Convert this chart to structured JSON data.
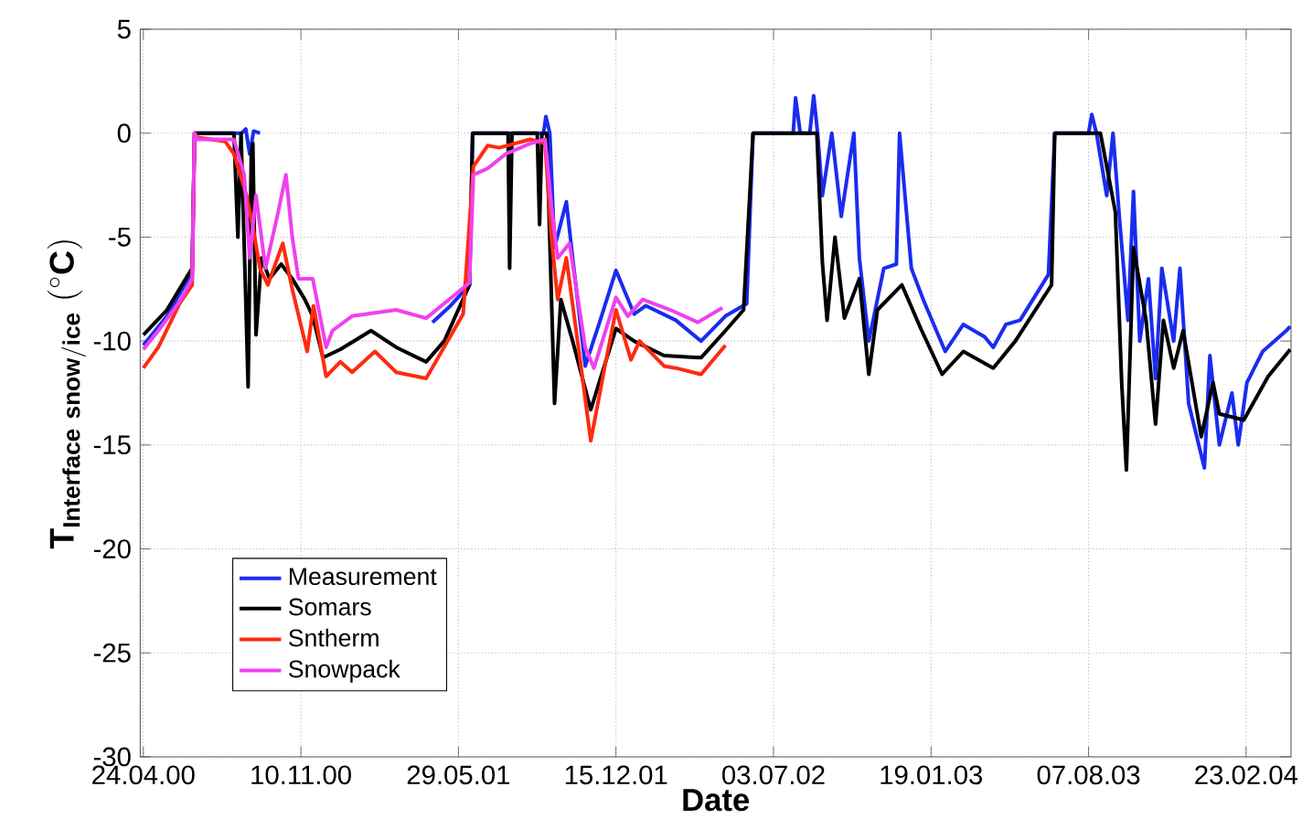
{
  "chart_data": {
    "type": "line",
    "xlabel": "Date",
    "ylabel": "\\mathbf{T_{Interface\\ snow/ice}\\ (^{\\circ}C)}",
    "xlim": [
      "2000-04-20",
      "2004-04-20"
    ],
    "ylim": [
      -30,
      5
    ],
    "xticks": [
      {
        "value": "2000-04-24",
        "label": "24.04.00"
      },
      {
        "value": "2000-11-10",
        "label": "10.11.00"
      },
      {
        "value": "2001-05-29",
        "label": "29.05.01"
      },
      {
        "value": "2001-12-15",
        "label": "15.12.01"
      },
      {
        "value": "2002-07-03",
        "label": "03.07.02"
      },
      {
        "value": "2003-01-19",
        "label": "19.01.03"
      },
      {
        "value": "2003-08-07",
        "label": "07.08.03"
      },
      {
        "value": "2004-02-23",
        "label": "23.02.04"
      }
    ],
    "yticks": [
      -30,
      -25,
      -20,
      -15,
      -10,
      -5,
      0,
      5
    ],
    "grid": true,
    "legend": "bottom left",
    "marker": "none",
    "line_style": "solid",
    "series": [
      {
        "name": "Measurement",
        "color": "#1a2cf0",
        "x": [
          "2000-04-24",
          "2000-05-24",
          "2000-06-20",
          "2000-06-25",
          "2000-06-28",
          "2000-08-27",
          "2000-09-01",
          "2000-09-06",
          "2000-09-11",
          "2000-09-19",
          "2001-01-01",
          "2001-04-26",
          "2001-05-19",
          "2001-06-12",
          "2001-06-16",
          "2001-09-14",
          "2001-09-17",
          "2001-09-22",
          "2001-09-28",
          "2001-10-13",
          "2001-10-21",
          "2001-11-06",
          "2001-11-25",
          "2001-12-15",
          "2002-01-07",
          "2002-01-22",
          "2002-03-01",
          "2002-04-02",
          "2002-05-03",
          "2002-05-30",
          "2002-06-07",
          "2002-07-28",
          "2002-07-31",
          "2002-08-06",
          "2002-08-18",
          "2002-08-23",
          "2002-08-28",
          "2002-09-03",
          "2002-09-15",
          "2002-09-27",
          "2002-10-13",
          "2002-10-20",
          "2002-11-01",
          "2002-11-20",
          "2002-12-06",
          "2002-12-10",
          "2002-12-25",
          "2003-01-09",
          "2003-02-06",
          "2003-03-01",
          "2003-03-28",
          "2003-04-08",
          "2003-04-24",
          "2003-05-12",
          "2003-06-17",
          "2003-06-25",
          "2003-08-07",
          "2003-08-11",
          "2003-08-17",
          "2003-08-30",
          "2003-09-07",
          "2003-09-15",
          "2003-09-26",
          "2003-10-03",
          "2003-10-11",
          "2003-10-22",
          "2003-10-31",
          "2003-11-08",
          "2003-11-23",
          "2003-12-01",
          "2003-12-12",
          "2004-01-01",
          "2004-01-08",
          "2004-01-20",
          "2004-02-05",
          "2004-02-13",
          "2004-02-24",
          "2004-03-15",
          "2004-04-14",
          "2004-04-19"
        ],
        "values": [
          -10.2,
          -8.8,
          -7,
          -6.7,
          0,
          0,
          0.2,
          -1,
          0.1,
          0,
          null,
          -9.1,
          -8.3,
          -7.3,
          0,
          0,
          0.8,
          0,
          -5.5,
          -3.3,
          -6,
          -11.2,
          -9,
          -6.6,
          -8.7,
          -8.3,
          -9,
          -10,
          -8.8,
          -8.2,
          0,
          0,
          1.7,
          0,
          0,
          1.8,
          0,
          -3,
          0,
          -4,
          0,
          -6,
          -10,
          -6.5,
          -6.3,
          0,
          -6.5,
          -8,
          -10.5,
          -9.2,
          -9.8,
          -10.3,
          -9.2,
          -9,
          -6.8,
          0,
          0,
          0.9,
          0,
          -3,
          0,
          -4,
          -9,
          -2.8,
          -10,
          -7,
          -11.8,
          -6.5,
          -10,
          -6.5,
          -13,
          -16.1,
          -10.7,
          -15,
          -12.5,
          -15,
          -12,
          -10.5,
          -9.5,
          -9.3
        ]
      },
      {
        "name": "Somars",
        "color": "#000000",
        "x": [
          "2000-04-24",
          "2000-05-24",
          "2000-06-20",
          "2000-06-25",
          "2000-06-28",
          "2000-08-17",
          "2000-08-22",
          "2000-08-26",
          "2000-09-01",
          "2000-09-04",
          "2000-09-08",
          "2000-09-10",
          "2000-09-14",
          "2000-09-21",
          "2000-10-01",
          "2000-10-16",
          "2000-10-30",
          "2000-11-15",
          "2000-11-25",
          "2000-12-08",
          "2000-12-30",
          "2001-02-07",
          "2001-03-11",
          "2001-04-18",
          "2001-05-11",
          "2001-06-12",
          "2001-06-16",
          "2001-07-31",
          "2001-08-02",
          "2001-08-05",
          "2001-09-06",
          "2001-09-09",
          "2001-09-12",
          "2001-09-18",
          "2001-09-28",
          "2001-10-06",
          "2001-10-21",
          "2001-11-13",
          "2001-12-15",
          "2002-01-07",
          "2002-02-14",
          "2002-04-02",
          "2002-05-03",
          "2002-05-26",
          "2002-06-07",
          "2002-08-27",
          "2002-09-03",
          "2002-09-09",
          "2002-09-19",
          "2002-10-01",
          "2002-10-20",
          "2002-11-01",
          "2002-11-12",
          "2002-12-13",
          "2003-01-06",
          "2003-02-02",
          "2003-03-01",
          "2003-04-08",
          "2003-05-06",
          "2003-06-21",
          "2003-06-25",
          "2003-08-22",
          "2003-09-10",
          "2003-09-18",
          "2003-09-24",
          "2003-10-03",
          "2003-10-19",
          "2003-10-31",
          "2003-11-10",
          "2003-11-23",
          "2003-12-05",
          "2003-12-28",
          "2004-01-12",
          "2004-01-20",
          "2004-02-20",
          "2004-03-22",
          "2004-04-19"
        ],
        "values": [
          -9.7,
          -8.5,
          -6.8,
          -6.5,
          0,
          0,
          -5,
          0,
          -8,
          -12.2,
          -1,
          -0.5,
          -9.7,
          -6,
          -7,
          -6.3,
          -7,
          -8,
          -8.8,
          -10.8,
          -10.4,
          -9.5,
          -10.3,
          -11,
          -10,
          -7.3,
          0,
          0,
          -6.5,
          0,
          0,
          -4.4,
          0,
          0,
          -13,
          -8,
          -10,
          -13.3,
          -9.4,
          -10,
          -10.7,
          -10.8,
          -9.5,
          -8.5,
          0,
          0,
          -6.2,
          -9,
          -5,
          -8.9,
          -7,
          -11.6,
          -8.5,
          -7.3,
          -9.4,
          -11.6,
          -10.5,
          -11.3,
          -10,
          -7.3,
          0,
          0,
          -3.8,
          -12,
          -16.2,
          -5.5,
          -9,
          -14,
          -9,
          -11.3,
          -9.5,
          -14.6,
          -12,
          -13.5,
          -13.8,
          -11.7,
          -10.4
        ]
      },
      {
        "name": "Sntherm",
        "color": "#ff2a10",
        "x": [
          "2000-04-24",
          "2000-05-13",
          "2000-06-09",
          "2000-06-25",
          "2000-06-28",
          "2000-07-01",
          "2000-08-06",
          "2000-08-17",
          "2000-09-02",
          "2000-09-10",
          "2000-09-19",
          "2000-09-29",
          "2000-10-18",
          "2000-10-30",
          "2000-11-18",
          "2000-11-26",
          "2000-12-12",
          "2000-12-30",
          "2001-01-14",
          "2001-02-12",
          "2001-03-11",
          "2001-04-18",
          "2001-06-04",
          "2001-06-17",
          "2001-07-05",
          "2001-07-20",
          "2001-08-28",
          "2001-09-16",
          "2001-09-24",
          "2001-10-02",
          "2001-10-13",
          "2001-10-29",
          "2001-11-13",
          "2001-12-02",
          "2001-12-15",
          "2002-01-03",
          "2002-01-14",
          "2002-02-14",
          "2002-03-01",
          "2002-04-02",
          "2002-05-03"
        ],
        "values": [
          -11.3,
          -10.3,
          -8.2,
          -7.3,
          0,
          -0.2,
          -0.4,
          -1,
          -3,
          -4.5,
          -6.5,
          -7.3,
          -5.3,
          -7.5,
          -10.5,
          -8.3,
          -11.7,
          -11,
          -11.5,
          -10.5,
          -11.5,
          -11.8,
          -8.7,
          -1.6,
          -0.6,
          -0.7,
          -0.3,
          -0.5,
          -5,
          -8,
          -6,
          -10.5,
          -14.8,
          -11,
          -8.5,
          -10.9,
          -10,
          -11.2,
          -11.3,
          -11.6,
          -10.2
        ]
      },
      {
        "name": "Snowpack",
        "color": "#f040f0",
        "x": [
          "2000-04-24",
          "2000-05-13",
          "2000-06-11",
          "2000-06-25",
          "2000-06-28",
          "2000-07-01",
          "2000-08-17",
          "2000-08-30",
          "2000-09-06",
          "2000-09-14",
          "2000-09-26",
          "2000-10-11",
          "2000-10-22",
          "2000-10-30",
          "2000-11-07",
          "2000-11-25",
          "2000-12-12",
          "2000-12-20",
          "2001-01-14",
          "2001-03-11",
          "2001-04-18",
          "2001-06-12",
          "2001-06-17",
          "2001-07-05",
          "2001-07-28",
          "2001-08-28",
          "2001-09-16",
          "2001-09-24",
          "2001-10-02",
          "2001-10-17",
          "2001-11-06",
          "2001-11-17",
          "2001-12-15",
          "2001-12-30",
          "2002-01-18",
          "2002-02-22",
          "2002-03-29",
          "2002-04-29"
        ],
        "values": [
          -10.4,
          -9.5,
          -8,
          -7,
          0,
          -0.3,
          -0.3,
          -2,
          -6,
          -3,
          -6.5,
          -4,
          -2,
          -5,
          -7,
          -7,
          -10.3,
          -9.5,
          -8.8,
          -8.5,
          -8.9,
          -7.2,
          -2,
          -1.7,
          -1,
          -0.5,
          -0.3,
          -3.5,
          -6,
          -5.3,
          -10.3,
          -11.3,
          -7.9,
          -8.8,
          -8,
          -8.5,
          -9.1,
          -8.4
        ]
      }
    ]
  }
}
